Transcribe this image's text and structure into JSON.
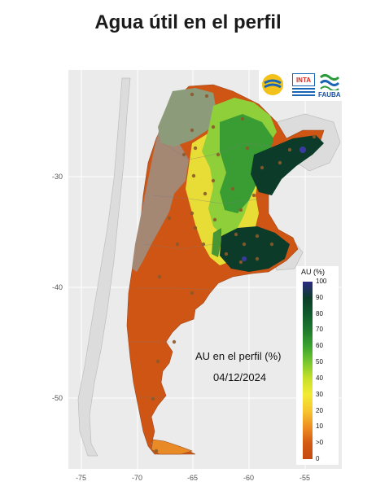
{
  "title": "Agua útil en el perfil",
  "annotation": {
    "line1": "AU en el perfil (%)",
    "line2": "04/12/2024"
  },
  "logos": {
    "inta_text": "INTA",
    "fauba_text": "FAUBA"
  },
  "legend": {
    "title": "AU (%)",
    "ticks": [
      "100",
      "90",
      "80",
      "70",
      "60",
      "50",
      "40",
      "30",
      "20",
      "10",
      ">0",
      "0"
    ],
    "colors": [
      "#2c2a84",
      "#0b3d2a",
      "#0f5a2b",
      "#1f7a2c",
      "#3aa32f",
      "#78c72e",
      "#c8e02a",
      "#f2ea35",
      "#f6c630",
      "#ee8f22",
      "#d45a14",
      "#c54a10"
    ]
  },
  "axes": {
    "x_ticks": [
      "-75",
      "-70",
      "-65",
      "-60",
      "-55"
    ],
    "y_ticks": [
      "-30",
      "-40",
      "-50"
    ]
  },
  "map_colors": {
    "panel_bg": "#ebebeb",
    "gridline": "#ffffff",
    "dry": "#cf5514",
    "arid_patagonia": "#d2501a",
    "mountains": "#a48874",
    "mountains_green": "#8c9c7a",
    "yellow": "#e8dd36",
    "light_green": "#8fd03a",
    "green": "#3a9d34",
    "dark_green": "#0d3b29",
    "purple": "#3b3aa0",
    "neighbors": "#dedede",
    "station": "#8b5a2b"
  }
}
